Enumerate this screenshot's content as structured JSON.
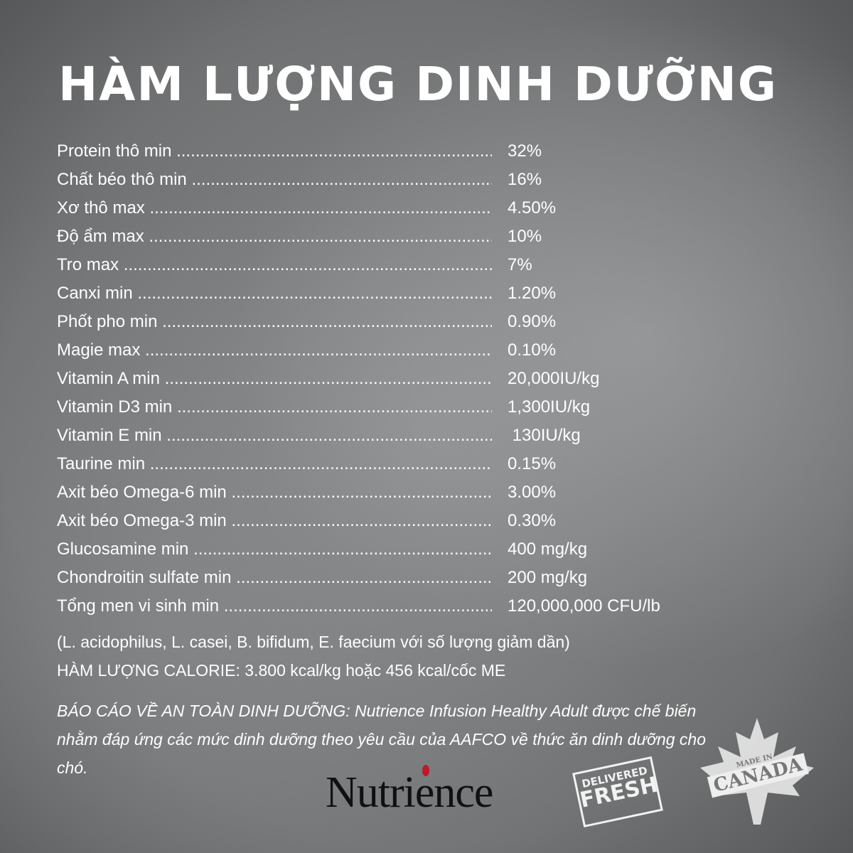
{
  "title": "HÀM LƯỢNG DINH DƯỠNG",
  "rows": [
    {
      "label": "Protein thô min",
      "value": "32%"
    },
    {
      "label": "Chất béo thô min",
      "value": "16%"
    },
    {
      "label": "Xơ thô max",
      "value": "4.50%"
    },
    {
      "label": "Độ ẩm max",
      "value": "10%"
    },
    {
      "label": "Tro max",
      "value": "7%"
    },
    {
      "label": "Canxi min",
      "value": "1.20%"
    },
    {
      "label": "Phốt pho min",
      "value": "0.90%"
    },
    {
      "label": "Magie max",
      "value": "0.10%"
    },
    {
      "label": "Vitamin A min",
      "value": "20,000IU/kg"
    },
    {
      "label": "Vitamin D3 min",
      "value": "1,300IU/kg"
    },
    {
      "label": "Vitamin E min",
      "value": " 130IU/kg"
    },
    {
      "label": "Taurine min",
      "value": "0.15%"
    },
    {
      "label": "Axit béo Omega-6 min",
      "value": "3.00%"
    },
    {
      "label": "Axit béo Omega-3 min",
      "value": "0.30%"
    },
    {
      "label": "Glucosamine min",
      "value": "400 mg/kg"
    },
    {
      "label": "Chondroitin sulfate min",
      "value": "200 mg/kg"
    },
    {
      "label": "Tổng men vi sinh min",
      "value": "120,000,000 CFU/lb"
    }
  ],
  "probiotics_note": "(L. acidophilus, L. casei, B. bifidum, E. faecium với số lượng giảm dần)",
  "calorie": "HÀM LƯỢNG CALORIE: 3.800 kcal/kg hoặc 456 kcal/cốc ME",
  "safety_statement": "BÁO CÁO VỀ AN TOÀN DINH DƯỠNG: Nutrience Infusion Healthy Adult được chế biến nhằm đáp ứng các mức dinh dưỡng theo yêu cầu của AAFCO về thức ăn dinh dưỡng cho chó.",
  "logos": {
    "brand": "Nutrience",
    "fresh_line1": "DELIVERED",
    "fresh_line2": "FRESH",
    "canada_line1": "MADE IN",
    "canada_line2": "CANADA",
    "brand_dot_color": "#c0172b"
  }
}
